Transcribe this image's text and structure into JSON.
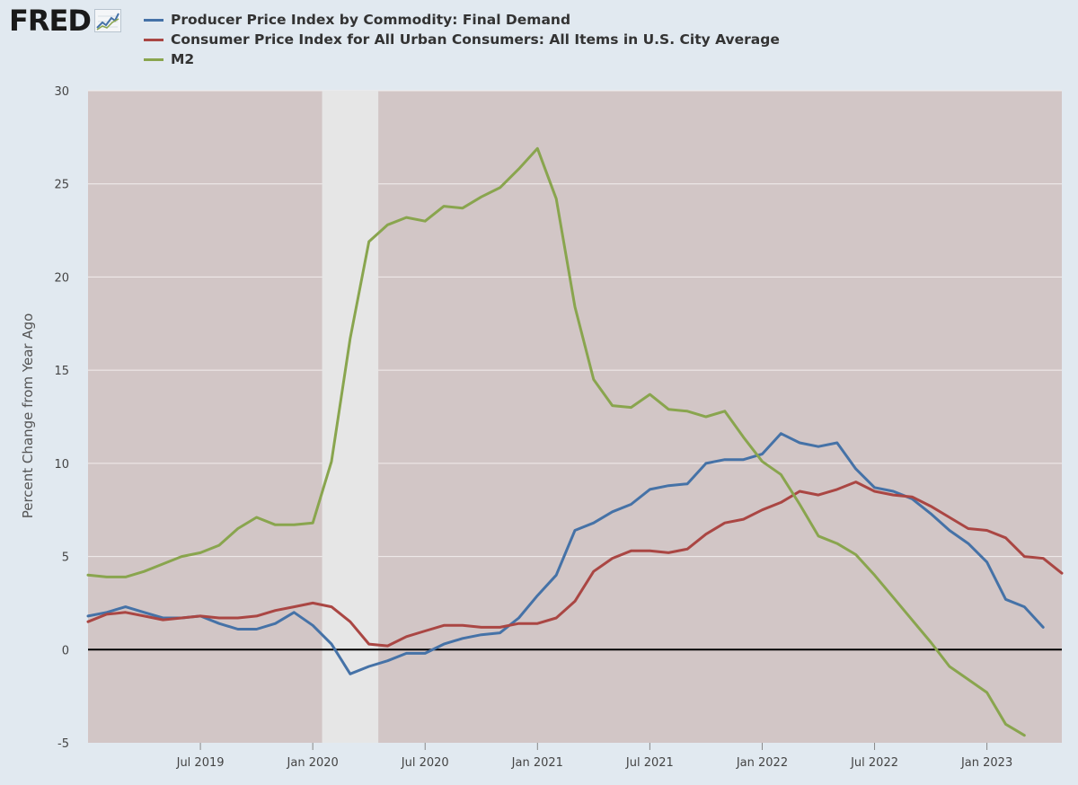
{
  "brand": {
    "name": "FRED",
    "icon": "trend-chart-icon"
  },
  "chart_data": {
    "type": "line",
    "title": "",
    "xlabel": "",
    "ylabel": "Percent Change from Year Ago",
    "ylim": [
      -5,
      30
    ],
    "xlim": [
      "2019-01",
      "2023-05"
    ],
    "yticks": [
      -5,
      0,
      5,
      10,
      15,
      20,
      25,
      30
    ],
    "xticks": [
      {
        "label": "Jul 2019",
        "date": "2019-07"
      },
      {
        "label": "Jan 2020",
        "date": "2020-01"
      },
      {
        "label": "Jul 2020",
        "date": "2020-07"
      },
      {
        "label": "Jan 2021",
        "date": "2021-01"
      },
      {
        "label": "Jul 2021",
        "date": "2021-07"
      },
      {
        "label": "Jan 2022",
        "date": "2022-01"
      },
      {
        "label": "Jul 2022",
        "date": "2022-07"
      },
      {
        "label": "Jan 2023",
        "date": "2023-01"
      }
    ],
    "grid": true,
    "legend": "top-left",
    "recession": {
      "start": "2020-02",
      "end": "2020-04"
    },
    "x_start": "2019-01",
    "series": [
      {
        "name": "Producer Price Index by Commodity: Final Demand",
        "color": "#4572a7",
        "values": [
          1.8,
          2.0,
          2.3,
          2.0,
          1.7,
          1.7,
          1.8,
          1.4,
          1.1,
          1.1,
          1.4,
          2.0,
          1.3,
          0.3,
          -1.3,
          -0.9,
          -0.6,
          -0.2,
          -0.2,
          0.3,
          0.6,
          0.8,
          0.9,
          1.7,
          2.9,
          4.0,
          6.4,
          6.8,
          7.4,
          7.8,
          8.6,
          8.8,
          8.9,
          10.0,
          10.2,
          10.2,
          10.5,
          11.6,
          11.1,
          10.9,
          11.1,
          9.7,
          8.7,
          8.5,
          8.1,
          7.3,
          6.4,
          5.7,
          4.7,
          2.7,
          2.3,
          1.2
        ]
      },
      {
        "name": "Consumer Price Index for All Urban Consumers: All Items in U.S. City Average",
        "color": "#aa4643",
        "values": [
          1.5,
          1.9,
          2.0,
          1.8,
          1.6,
          1.7,
          1.8,
          1.7,
          1.7,
          1.8,
          2.1,
          2.3,
          2.5,
          2.3,
          1.5,
          0.3,
          0.2,
          0.7,
          1.0,
          1.3,
          1.3,
          1.2,
          1.2,
          1.4,
          1.4,
          1.7,
          2.6,
          4.2,
          4.9,
          5.3,
          5.3,
          5.2,
          5.4,
          6.2,
          6.8,
          7.0,
          7.5,
          7.9,
          8.5,
          8.3,
          8.6,
          9.0,
          8.5,
          8.3,
          8.2,
          7.7,
          7.1,
          6.5,
          6.4,
          6.0,
          5.0,
          4.9,
          4.1
        ]
      },
      {
        "name": "M2",
        "color": "#89a54e",
        "values": [
          4.0,
          3.9,
          3.9,
          4.2,
          4.6,
          5.0,
          5.2,
          5.6,
          6.5,
          7.1,
          6.7,
          6.7,
          6.8,
          10.1,
          16.7,
          21.9,
          22.8,
          23.2,
          23.0,
          23.8,
          23.7,
          24.3,
          24.8,
          25.8,
          26.9,
          24.2,
          18.4,
          14.5,
          13.1,
          13.0,
          13.7,
          12.9,
          12.8,
          12.5,
          12.8,
          11.4,
          10.1,
          9.4,
          7.8,
          6.1,
          5.7,
          5.1,
          4.0,
          2.8,
          1.6,
          0.4,
          -0.9,
          -1.6,
          -2.3,
          -4.0,
          -4.6
        ]
      }
    ]
  }
}
